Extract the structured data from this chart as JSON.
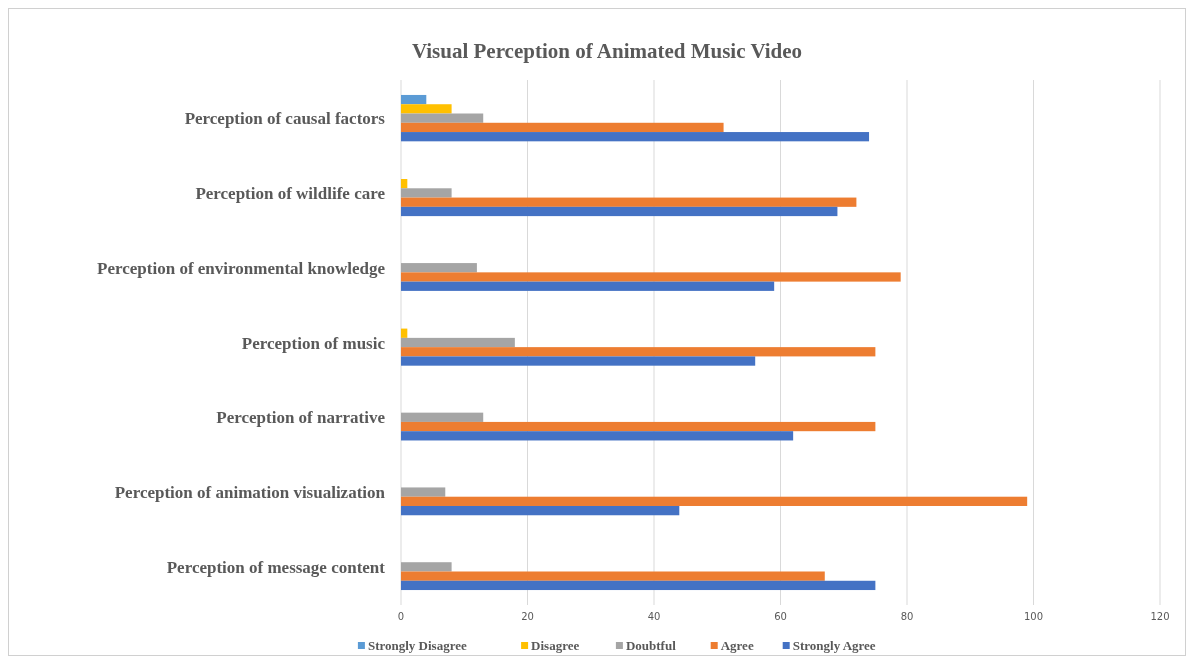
{
  "chart_data": {
    "type": "bar",
    "orientation": "horizontal",
    "title": "Visual Perception of Animated Music Video",
    "categories": [
      "Perception of causal factors",
      "Perception of wildlife care",
      "Perception of environmental knowledge",
      "Perception of music",
      "Perception of narrative",
      "Perception of animation visualization",
      "Perception of message content"
    ],
    "series": [
      {
        "name": "Strongly Disagree",
        "color": "#5b9bd5",
        "values": [
          4,
          0,
          0,
          0,
          0,
          0,
          0
        ]
      },
      {
        "name": "Disagree",
        "color": "#ffc000",
        "values": [
          8,
          1,
          0,
          1,
          0,
          0,
          0
        ]
      },
      {
        "name": "Doubtful",
        "color": "#a5a5a5",
        "values": [
          13,
          8,
          12,
          18,
          13,
          7,
          8
        ]
      },
      {
        "name": "Agree",
        "color": "#ed7d31",
        "values": [
          51,
          72,
          79,
          75,
          75,
          99,
          67
        ]
      },
      {
        "name": "Strongly Agree",
        "color": "#4472c4",
        "values": [
          74,
          69,
          59,
          56,
          62,
          44,
          75
        ]
      }
    ],
    "xlim": [
      0,
      120
    ],
    "xticks": [
      0,
      20,
      40,
      60,
      80,
      100,
      120
    ],
    "grid": "x",
    "legend": "bottom"
  }
}
